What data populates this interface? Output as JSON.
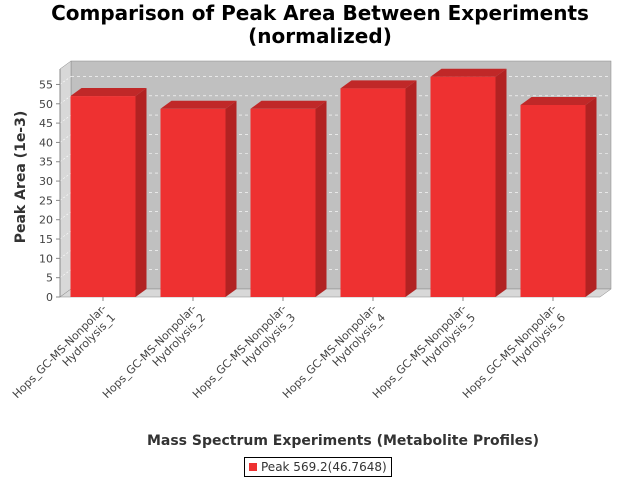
{
  "chart_data": {
    "type": "bar",
    "title_lines": [
      "Comparison of Peak Area Between Experiments",
      "(normalized)"
    ],
    "xlabel": "Mass Spectrum Experiments (Metabolite Profiles)",
    "ylabel": "Peak Area (1e-3)",
    "categories": [
      [
        "Hops_GC-MS-Nonpolar-",
        "Hydrolysis_1"
      ],
      [
        "Hops_GC-MS-Nonpolar-",
        "Hydrolysis_2"
      ],
      [
        "Hops_GC-MS-Nonpolar-",
        "Hydrolysis_3"
      ],
      [
        "Hops_GC-MS-Nonpolar-",
        "Hydrolysis_4"
      ],
      [
        "Hops_GC-MS-Nonpolar-",
        "Hydrolysis_5"
      ],
      [
        "Hops_GC-MS-Nonpolar-",
        "Hydrolysis_6"
      ]
    ],
    "yticks": [
      "0",
      "5",
      "10",
      "15",
      "20",
      "25",
      "30",
      "35",
      "40",
      "45",
      "50",
      "55"
    ],
    "ylim": [
      0,
      59
    ],
    "grid": true,
    "legend_position": "bottom",
    "series": [
      {
        "name": "Peak 569.2(46.7648)",
        "color": "#ee3131",
        "values": [
          52,
          48.7,
          48.7,
          54,
          57,
          49.7
        ]
      }
    ],
    "plot_background": "#c0c0c0"
  }
}
